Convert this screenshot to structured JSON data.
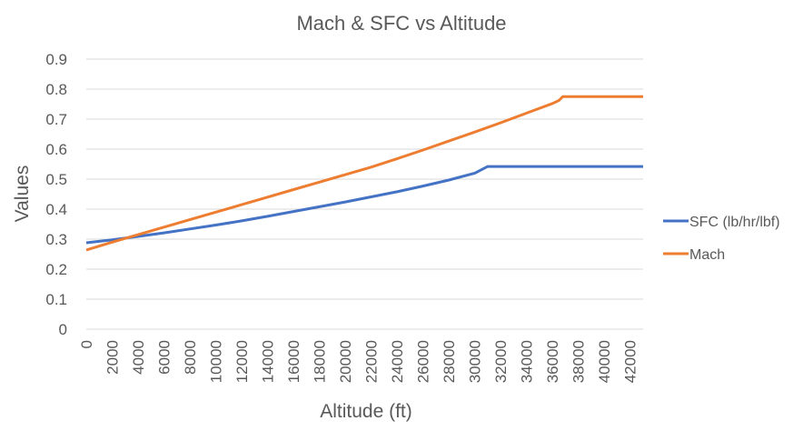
{
  "chart_data": {
    "type": "line",
    "title": "Mach & SFC vs Altitude",
    "xlabel": "Altitude (ft)",
    "ylabel": "Values",
    "ylim": [
      0,
      0.9
    ],
    "yticks": [
      "0",
      "0.1",
      "0.2",
      "0.3",
      "0.4",
      "0.5",
      "0.6",
      "0.7",
      "0.8",
      "0.9"
    ],
    "xlim": [
      0,
      43000
    ],
    "xticks": [
      "0",
      "2000",
      "4000",
      "6000",
      "8000",
      "10000",
      "12000",
      "14000",
      "16000",
      "18000",
      "20000",
      "22000",
      "24000",
      "26000",
      "28000",
      "30000",
      "32000",
      "34000",
      "36000",
      "38000",
      "40000",
      "42000"
    ],
    "grid": true,
    "legend": "right",
    "series": [
      {
        "name": "SFC (lb/hr/lbf)",
        "color": "#4472C4",
        "x": [
          0,
          2000,
          4000,
          6000,
          8000,
          10000,
          12000,
          14000,
          16000,
          18000,
          20000,
          22000,
          24000,
          26000,
          28000,
          30000,
          31000,
          32000,
          34000,
          36000,
          38000,
          40000,
          42000,
          43000
        ],
        "values": [
          0.288,
          0.298,
          0.309,
          0.321,
          0.334,
          0.347,
          0.361,
          0.376,
          0.392,
          0.408,
          0.424,
          0.441,
          0.458,
          0.477,
          0.497,
          0.52,
          0.542,
          0.542,
          0.542,
          0.542,
          0.542,
          0.542,
          0.542,
          0.542
        ]
      },
      {
        "name": "Mach",
        "color": "#ED7D31",
        "x": [
          0,
          2000,
          4000,
          6000,
          8000,
          10000,
          12000,
          14000,
          16000,
          18000,
          20000,
          22000,
          24000,
          26000,
          28000,
          30000,
          32000,
          34000,
          36000,
          36500,
          36800,
          38000,
          40000,
          42000,
          43000
        ],
        "values": [
          0.264,
          0.29,
          0.315,
          0.34,
          0.365,
          0.39,
          0.415,
          0.44,
          0.465,
          0.49,
          0.515,
          0.54,
          0.568,
          0.597,
          0.627,
          0.657,
          0.688,
          0.72,
          0.752,
          0.762,
          0.775,
          0.775,
          0.775,
          0.775,
          0.775
        ]
      }
    ]
  }
}
